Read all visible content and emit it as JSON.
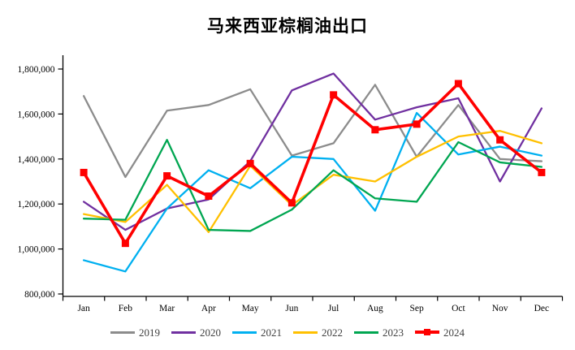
{
  "chart_data": {
    "type": "line",
    "title": "马来西亚棕榈油出口",
    "categories": [
      "Jan",
      "Feb",
      "Mar",
      "Apr",
      "May",
      "Jun",
      "Jul",
      "Aug",
      "Sep",
      "Oct",
      "Nov",
      "Dec"
    ],
    "series": [
      {
        "name": "2019",
        "color": "#8C8C8C",
        "marker": false,
        "values": [
          1680000,
          1320000,
          1615000,
          1640000,
          1710000,
          1415000,
          1470000,
          1730000,
          1410000,
          1640000,
          1400000,
          1390000
        ]
      },
      {
        "name": "2020",
        "color": "#7030A0",
        "marker": false,
        "values": [
          1210000,
          1085000,
          1180000,
          1220000,
          1390000,
          1705000,
          1780000,
          1575000,
          1630000,
          1670000,
          1300000,
          1625000
        ]
      },
      {
        "name": "2021",
        "color": "#00B0F0",
        "marker": false,
        "values": [
          950000,
          900000,
          1180000,
          1350000,
          1270000,
          1410000,
          1400000,
          1170000,
          1605000,
          1420000,
          1455000,
          1415000
        ]
      },
      {
        "name": "2022",
        "color": "#FFC000",
        "marker": false,
        "values": [
          1155000,
          1120000,
          1285000,
          1075000,
          1370000,
          1195000,
          1330000,
          1300000,
          1410000,
          1500000,
          1525000,
          1470000
        ]
      },
      {
        "name": "2023",
        "color": "#00A651",
        "marker": false,
        "values": [
          1135000,
          1130000,
          1485000,
          1085000,
          1080000,
          1175000,
          1350000,
          1225000,
          1210000,
          1475000,
          1385000,
          1365000
        ]
      },
      {
        "name": "2024",
        "color": "#FF0000",
        "marker": true,
        "values": [
          1340000,
          1025000,
          1325000,
          1235000,
          1380000,
          1205000,
          1685000,
          1530000,
          1555000,
          1735000,
          1485000,
          1340000
        ]
      }
    ],
    "ylim": [
      800000,
      1800000
    ],
    "ytick_step": 200000,
    "grid": false,
    "legend_position": "bottom",
    "axis_color": "#000000",
    "tick_label_color": "#000000"
  }
}
